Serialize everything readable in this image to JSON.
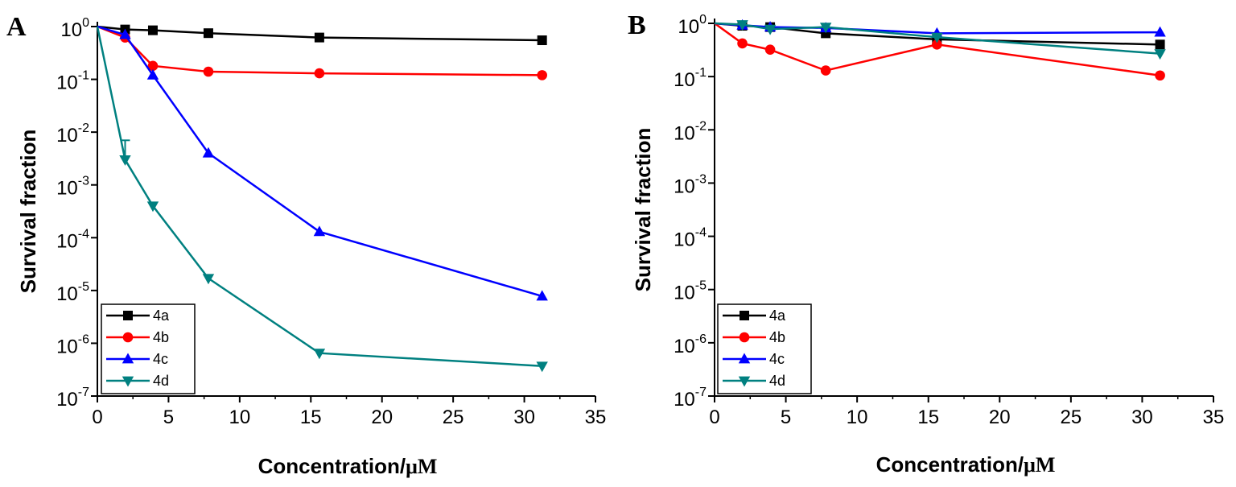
{
  "chart_data": [
    {
      "type": "line",
      "panel": "A",
      "xlabel": "Concentration/",
      "xlabel_unit": "μM",
      "ylabel": "Survival fraction",
      "yscale": "log",
      "xlim": [
        0,
        35
      ],
      "ylim": [
        1e-07,
        1
      ],
      "x_ticks": [
        "0",
        "5",
        "10",
        "15",
        "20",
        "25",
        "30",
        "35"
      ],
      "y_ticks": [
        {
          "base": "10",
          "exp": "0"
        },
        {
          "base": "10",
          "exp": "-1"
        },
        {
          "base": "10",
          "exp": "-2"
        },
        {
          "base": "10",
          "exp": "-3"
        },
        {
          "base": "10",
          "exp": "-4"
        },
        {
          "base": "10",
          "exp": "-5"
        },
        {
          "base": "10",
          "exp": "-6"
        },
        {
          "base": "10",
          "exp": "-7"
        }
      ],
      "legend_position": "bottom-left",
      "series": [
        {
          "name": "4a",
          "color": "#000000",
          "marker": "square",
          "x": [
            0,
            1.95,
            3.9,
            7.8,
            15.6,
            31.25
          ],
          "y": [
            1,
            0.88,
            0.85,
            0.75,
            0.62,
            0.55
          ]
        },
        {
          "name": "4b",
          "color": "#ff0000",
          "marker": "circle",
          "x": [
            0,
            1.95,
            3.9,
            7.8,
            15.6,
            31.25
          ],
          "y": [
            1,
            0.62,
            0.18,
            0.14,
            0.13,
            0.12
          ]
        },
        {
          "name": "4c",
          "color": "#0000ff",
          "marker": "triangle-up",
          "x": [
            0,
            1.95,
            3.9,
            7.8,
            15.6,
            31.25
          ],
          "y": [
            1,
            0.7,
            0.12,
            0.004,
            0.00013,
            7.8e-06
          ]
        },
        {
          "name": "4d",
          "color": "#008080",
          "marker": "triangle-down",
          "x": [
            0,
            1.95,
            3.9,
            7.8,
            15.6,
            31.25
          ],
          "y": [
            1,
            0.003,
            0.0004,
            1.7e-05,
            6.5e-07,
            3.7e-07
          ],
          "error_high": [
            null,
            0.007,
            null,
            null,
            null,
            null
          ]
        }
      ]
    },
    {
      "type": "line",
      "panel": "B",
      "xlabel": "Concentration/",
      "xlabel_unit": "μM",
      "ylabel": "Survival fraction",
      "yscale": "log",
      "xlim": [
        0,
        35
      ],
      "ylim": [
        1e-07,
        1
      ],
      "x_ticks": [
        "0",
        "5",
        "10",
        "15",
        "20",
        "25",
        "30",
        "35"
      ],
      "y_ticks": [
        {
          "base": "10",
          "exp": "0"
        },
        {
          "base": "10",
          "exp": "-1"
        },
        {
          "base": "10",
          "exp": "-2"
        },
        {
          "base": "10",
          "exp": "-3"
        },
        {
          "base": "10",
          "exp": "-4"
        },
        {
          "base": "10",
          "exp": "-5"
        },
        {
          "base": "10",
          "exp": "-6"
        },
        {
          "base": "10",
          "exp": "-7"
        }
      ],
      "legend_position": "bottom-left",
      "series": [
        {
          "name": "4a",
          "color": "#000000",
          "marker": "square",
          "x": [
            0,
            1.95,
            3.9,
            7.8,
            15.6,
            31.25
          ],
          "y": [
            1,
            0.9,
            0.85,
            0.65,
            0.5,
            0.4
          ]
        },
        {
          "name": "4b",
          "color": "#ff0000",
          "marker": "circle",
          "x": [
            0,
            1.95,
            3.9,
            7.8,
            15.6,
            31.25
          ],
          "y": [
            1,
            0.42,
            0.32,
            0.13,
            0.4,
            0.105
          ]
        },
        {
          "name": "4c",
          "color": "#0000ff",
          "marker": "triangle-up",
          "x": [
            0,
            1.95,
            3.9,
            7.8,
            15.6,
            31.25
          ],
          "y": [
            1,
            0.92,
            0.85,
            0.82,
            0.65,
            0.68
          ]
        },
        {
          "name": "4d",
          "color": "#008080",
          "marker": "triangle-down",
          "x": [
            0,
            1.95,
            3.9,
            7.8,
            15.6,
            31.25
          ],
          "y": [
            1,
            0.95,
            0.78,
            0.85,
            0.55,
            0.27
          ]
        }
      ]
    }
  ]
}
